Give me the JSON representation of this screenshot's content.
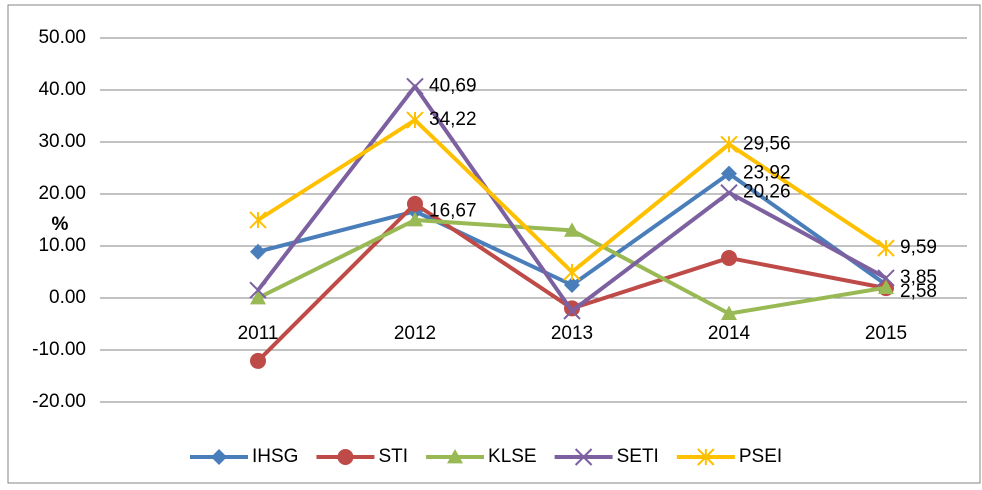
{
  "chart_data": {
    "type": "line",
    "y_label": "%",
    "categories": [
      "2011",
      "2012",
      "2013",
      "2014",
      "2015"
    ],
    "ylim": [
      -20,
      50
    ],
    "yticks": [
      {
        "value": -20,
        "label": "-20.00"
      },
      {
        "value": -10,
        "label": "-10.00"
      },
      {
        "value": 0,
        "label": "0.00"
      },
      {
        "value": 10,
        "label": "10.00"
      },
      {
        "value": 20,
        "label": "20.00"
      },
      {
        "value": 30,
        "label": "30.00"
      },
      {
        "value": 40,
        "label": "40.00"
      },
      {
        "value": 50,
        "label": "50.00"
      }
    ],
    "grid": true,
    "legend": "bottom",
    "series": [
      {
        "name": "IHSG",
        "color": "#4a7ebb",
        "marker": "diamond",
        "values": [
          8.9,
          16.67,
          2.5,
          23.92,
          2.58
        ],
        "value_labels": [
          null,
          "16,67",
          null,
          "23,92",
          "2,58"
        ]
      },
      {
        "name": "STI",
        "color": "#be4b48",
        "marker": "circle",
        "values": [
          -12.1,
          18.1,
          -2.0,
          7.7,
          1.9
        ],
        "value_labels": [
          null,
          null,
          null,
          null,
          null
        ]
      },
      {
        "name": "KLSE",
        "color": "#98b954",
        "marker": "triangle",
        "values": [
          0.0,
          15.0,
          13.0,
          -3.0,
          2.0
        ],
        "value_labels": [
          null,
          null,
          null,
          null,
          null
        ]
      },
      {
        "name": "SETI",
        "color": "#7d60a0",
        "marker": "x",
        "values": [
          1.5,
          40.69,
          -2.5,
          20.26,
          3.85
        ],
        "value_labels": [
          null,
          "40,69",
          null,
          "20,26",
          "3,85"
        ]
      },
      {
        "name": "PSEI",
        "color": "#ffc000",
        "marker": "star",
        "values": [
          15.0,
          34.22,
          5.0,
          29.56,
          9.59
        ],
        "value_labels": [
          null,
          "34,22",
          null,
          "29,56",
          "9,59"
        ]
      }
    ]
  }
}
